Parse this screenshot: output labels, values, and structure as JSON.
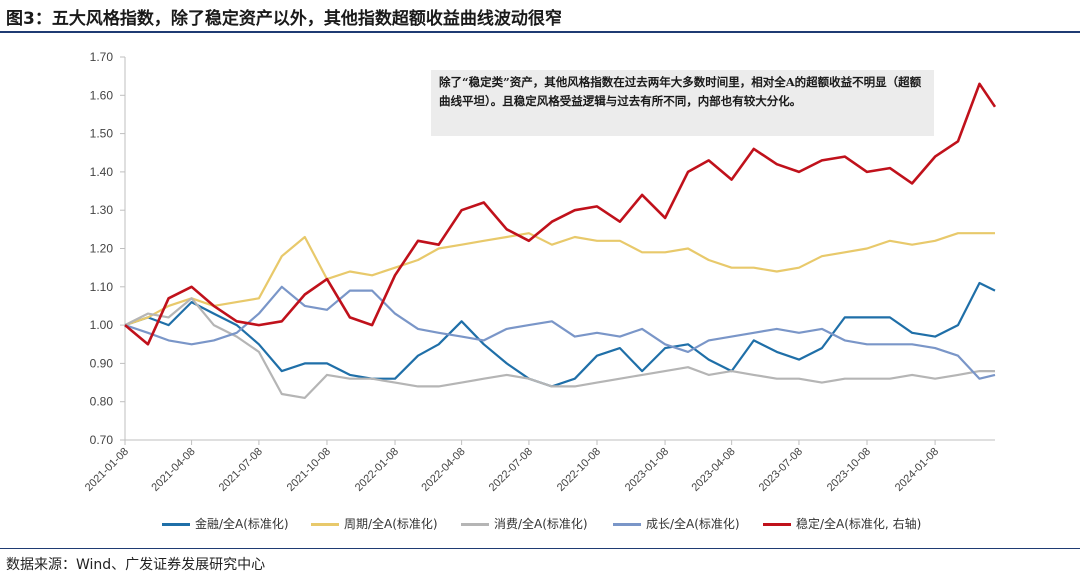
{
  "header": {
    "title": "图3：五大风格指数，除了稳定资产以外，其他指数超额收益曲线波动很窄"
  },
  "annotation": {
    "text": "除了“稳定类”资产，其他风格指数在过去两年大多数时间里，相对全A的超额收益不明显（超额曲线平坦）。且稳定风格受益逻辑与过去有所不同，内部也有较大分化。"
  },
  "footer": {
    "source": "数据来源：Wind、广发证券发展研究中心"
  },
  "chart_data": {
    "type": "line",
    "title": "",
    "xlabel": "",
    "ylabel": "",
    "ylim": [
      0.7,
      1.7
    ],
    "yticks": [
      "0.70",
      "0.80",
      "0.90",
      "1.00",
      "1.10",
      "1.20",
      "1.30",
      "1.40",
      "1.50",
      "1.60",
      "1.70"
    ],
    "xlim": [
      "2021-01-08",
      "2024-03-29"
    ],
    "xticks": [
      "2021-01-08",
      "2021-04-08",
      "2021-07-08",
      "2021-10-08",
      "2022-01-08",
      "2022-04-08",
      "2022-07-08",
      "2022-10-08",
      "2023-01-08",
      "2023-04-08",
      "2023-07-08",
      "2023-10-08",
      "2024-01-08"
    ],
    "grid": false,
    "legend_position": "bottom",
    "x": [
      "2021-01-08",
      "2021-02-08",
      "2021-03-08",
      "2021-04-08",
      "2021-05-08",
      "2021-06-08",
      "2021-07-08",
      "2021-08-08",
      "2021-09-08",
      "2021-10-08",
      "2021-11-08",
      "2021-12-08",
      "2022-01-08",
      "2022-02-08",
      "2022-03-08",
      "2022-04-08",
      "2022-05-08",
      "2022-06-08",
      "2022-07-08",
      "2022-08-08",
      "2022-09-08",
      "2022-10-08",
      "2022-11-08",
      "2022-12-08",
      "2023-01-08",
      "2023-02-08",
      "2023-03-08",
      "2023-04-08",
      "2023-05-08",
      "2023-06-08",
      "2023-07-08",
      "2023-08-08",
      "2023-09-08",
      "2023-10-08",
      "2023-11-08",
      "2023-12-08",
      "2024-01-08",
      "2024-02-08",
      "2024-03-08",
      "2024-03-29"
    ],
    "series": [
      {
        "name": "金融/全A(标准化)",
        "color": "#1f6fa8",
        "values": [
          1.0,
          1.02,
          1.0,
          1.06,
          1.03,
          1.0,
          0.95,
          0.88,
          0.9,
          0.9,
          0.87,
          0.86,
          0.86,
          0.92,
          0.95,
          1.01,
          0.95,
          0.9,
          0.86,
          0.84,
          0.86,
          0.92,
          0.94,
          0.88,
          0.94,
          0.95,
          0.91,
          0.88,
          0.96,
          0.93,
          0.91,
          0.94,
          1.02,
          1.02,
          1.02,
          0.98,
          0.97,
          1.0,
          1.11,
          1.09
        ]
      },
      {
        "name": "周期/全A(标准化)",
        "color": "#e8c96b",
        "values": [
          1.0,
          1.02,
          1.05,
          1.07,
          1.05,
          1.06,
          1.07,
          1.18,
          1.23,
          1.12,
          1.14,
          1.13,
          1.15,
          1.17,
          1.2,
          1.21,
          1.22,
          1.23,
          1.24,
          1.21,
          1.23,
          1.22,
          1.22,
          1.19,
          1.19,
          1.2,
          1.17,
          1.15,
          1.15,
          1.14,
          1.15,
          1.18,
          1.19,
          1.2,
          1.22,
          1.21,
          1.22,
          1.24,
          1.24,
          1.24
        ]
      },
      {
        "name": "消费/全A(标准化)",
        "color": "#b5b5b5",
        "values": [
          1.0,
          1.03,
          1.02,
          1.07,
          1.0,
          0.97,
          0.93,
          0.82,
          0.81,
          0.87,
          0.86,
          0.86,
          0.85,
          0.84,
          0.84,
          0.85,
          0.86,
          0.87,
          0.86,
          0.84,
          0.84,
          0.85,
          0.86,
          0.87,
          0.88,
          0.89,
          0.87,
          0.88,
          0.87,
          0.86,
          0.86,
          0.85,
          0.86,
          0.86,
          0.86,
          0.87,
          0.86,
          0.87,
          0.88,
          0.88
        ]
      },
      {
        "name": "成长/全A(标准化)",
        "color": "#7a96c8",
        "values": [
          1.0,
          0.98,
          0.96,
          0.95,
          0.96,
          0.98,
          1.03,
          1.1,
          1.05,
          1.04,
          1.09,
          1.09,
          1.03,
          0.99,
          0.98,
          0.97,
          0.96,
          0.99,
          1.0,
          1.01,
          0.97,
          0.98,
          0.97,
          0.99,
          0.95,
          0.93,
          0.96,
          0.97,
          0.98,
          0.99,
          0.98,
          0.99,
          0.96,
          0.95,
          0.95,
          0.95,
          0.94,
          0.92,
          0.86,
          0.87
        ]
      },
      {
        "name": "稳定/全A(标准化, 右轴)",
        "color": "#c0111b",
        "values": [
          1.0,
          0.95,
          1.07,
          1.1,
          1.05,
          1.01,
          1.0,
          1.01,
          1.08,
          1.12,
          1.02,
          1.0,
          1.13,
          1.22,
          1.21,
          1.3,
          1.32,
          1.25,
          1.22,
          1.27,
          1.3,
          1.31,
          1.27,
          1.34,
          1.28,
          1.4,
          1.43,
          1.38,
          1.46,
          1.42,
          1.4,
          1.43,
          1.44,
          1.4,
          1.41,
          1.37,
          1.44,
          1.48,
          1.63,
          1.57
        ]
      }
    ]
  }
}
